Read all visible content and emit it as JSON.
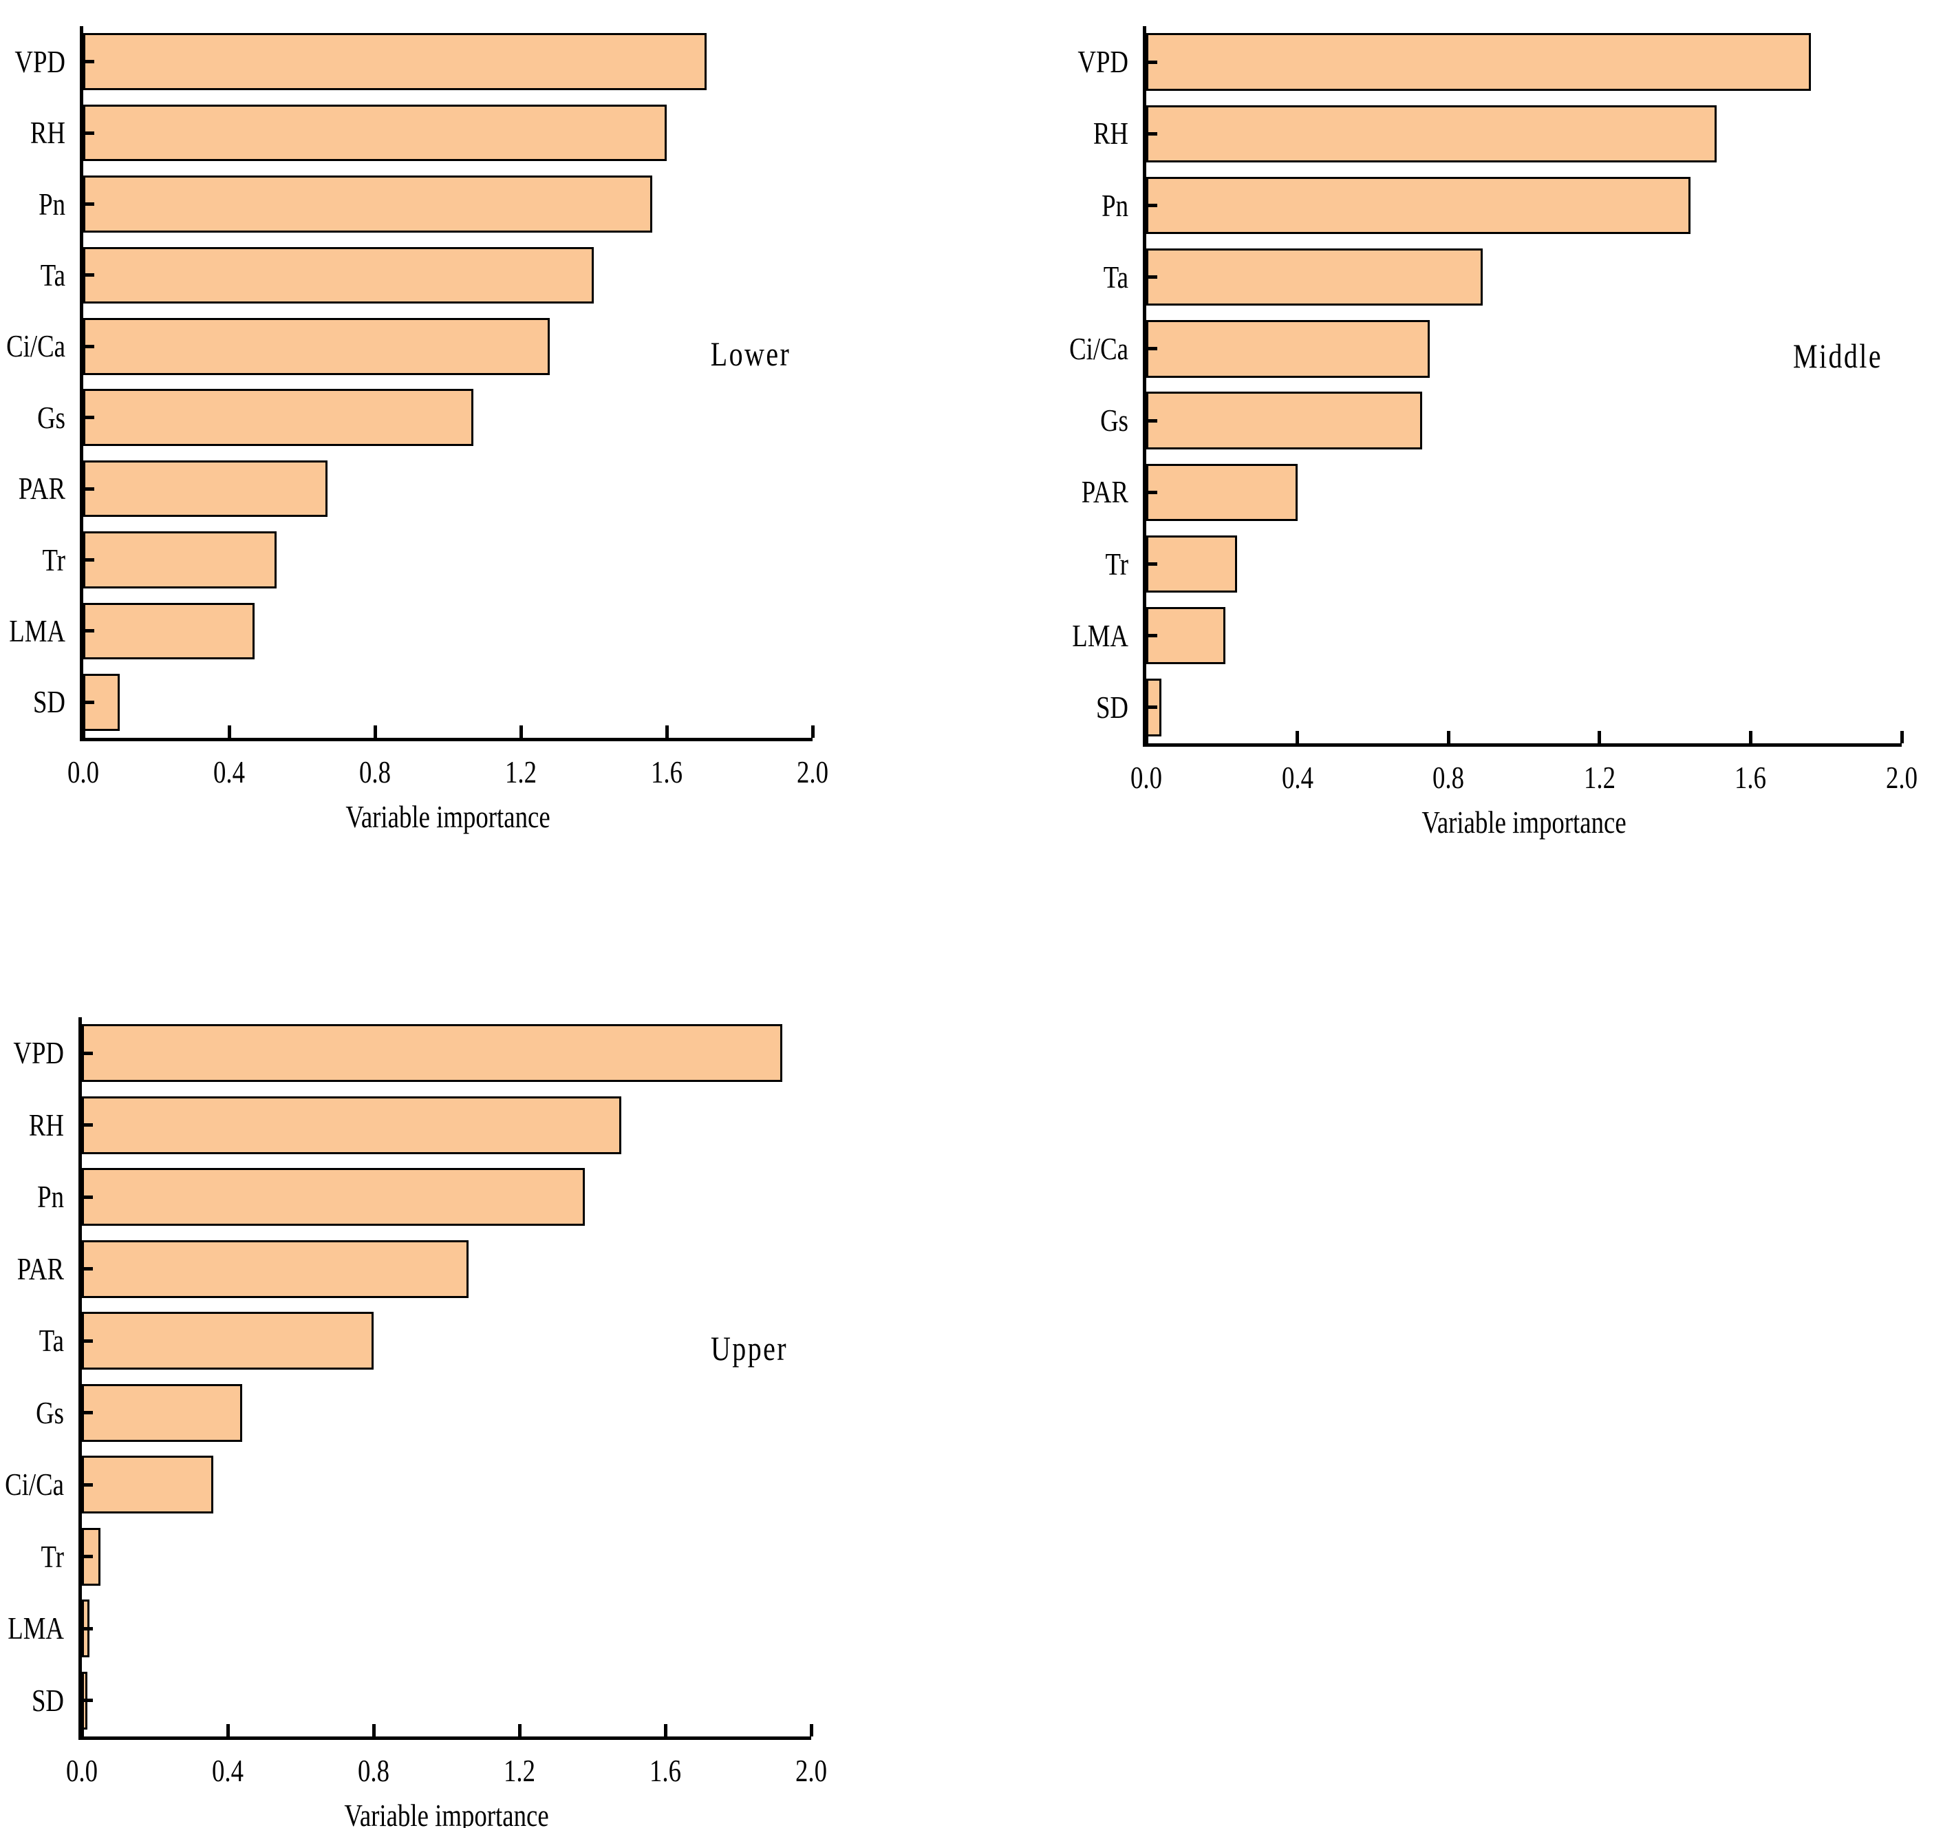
{
  "figure": {
    "background": "#ffffff",
    "bar_fill_color": "#FBC796",
    "bar_edge_color": "#000000",
    "axis_color": "#000000",
    "text_color": "#000000"
  },
  "chart_data": [
    {
      "type": "bar",
      "orientation": "horizontal",
      "panel_label": "Lower",
      "categories": [
        "VPD",
        "RH",
        "Pn",
        "Ta",
        "Ci/Ca",
        "Gs",
        "PAR",
        "Tr",
        "LMA",
        "SD"
      ],
      "values": [
        1.71,
        1.6,
        1.56,
        1.4,
        1.28,
        1.07,
        0.67,
        0.53,
        0.47,
        0.1
      ],
      "xlabel": "Variable importance",
      "xlim": [
        0.0,
        2.0
      ],
      "xticks": [
        0.0,
        0.4,
        0.8,
        1.2,
        1.6,
        2.0
      ],
      "xtick_labels": [
        "0.0",
        "0.4",
        "0.8",
        "1.2",
        "1.6",
        "2.0"
      ],
      "grid": false,
      "legend": "none"
    },
    {
      "type": "bar",
      "orientation": "horizontal",
      "panel_label": "Middle",
      "categories": [
        "VPD",
        "RH",
        "Pn",
        "Ta",
        "Ci/Ca",
        "Gs",
        "PAR",
        "Tr",
        "LMA",
        "SD"
      ],
      "values": [
        1.76,
        1.51,
        1.44,
        0.89,
        0.75,
        0.73,
        0.4,
        0.24,
        0.21,
        0.04
      ],
      "xlabel": "Variable importance",
      "xlim": [
        0.0,
        2.0
      ],
      "xticks": [
        0.0,
        0.4,
        0.8,
        1.2,
        1.6,
        2.0
      ],
      "xtick_labels": [
        "0.0",
        "0.4",
        "0.8",
        "1.2",
        "1.6",
        "2.0"
      ],
      "grid": false,
      "legend": "none"
    },
    {
      "type": "bar",
      "orientation": "horizontal",
      "panel_label": "Upper",
      "categories": [
        "VPD",
        "RH",
        "Pn",
        "PAR",
        "Ta",
        "Gs",
        "Ci/Ca",
        "Tr",
        "LMA",
        "SD"
      ],
      "values": [
        1.92,
        1.48,
        1.38,
        1.06,
        0.8,
        0.44,
        0.36,
        0.05,
        0.02,
        0.015
      ],
      "xlabel": "Variable importance",
      "xlim": [
        0.0,
        2.0
      ],
      "xticks": [
        0.0,
        0.4,
        0.8,
        1.2,
        1.6,
        2.0
      ],
      "xtick_labels": [
        "0.0",
        "0.4",
        "0.8",
        "1.2",
        "1.6",
        "2.0"
      ],
      "grid": false,
      "legend": "none"
    }
  ]
}
